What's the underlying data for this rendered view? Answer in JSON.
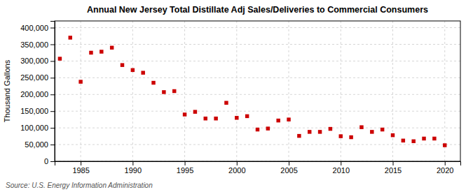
{
  "chart_data": {
    "type": "scatter",
    "title": "Annual New Jersey Total Distillate Adj Sales/Deliveries to Commercial Consumers",
    "ylabel": "Thousand Gallons",
    "source": "Source: U.S. Energy Information Administration",
    "x": [
      1983,
      1984,
      1985,
      1986,
      1987,
      1988,
      1989,
      1990,
      1991,
      1992,
      1993,
      1994,
      1995,
      1996,
      1997,
      1998,
      1999,
      2000,
      2001,
      2002,
      2003,
      2004,
      2005,
      2006,
      2007,
      2008,
      2009,
      2010,
      2011,
      2012,
      2013,
      2014,
      2015,
      2016,
      2017,
      2018,
      2019,
      2020
    ],
    "values": [
      307000,
      370000,
      238000,
      325000,
      328000,
      340000,
      288000,
      273000,
      265000,
      235000,
      207000,
      210000,
      140000,
      148000,
      128000,
      128000,
      175000,
      130000,
      135000,
      95000,
      98000,
      122000,
      125000,
      76000,
      88000,
      88000,
      97000,
      75000,
      72000,
      102000,
      88000,
      95000,
      78000,
      62000,
      60000,
      68000,
      68000,
      48000
    ],
    "color": "#cc0000",
    "marker": "square",
    "grid": true,
    "xlim": [
      1982.5,
      2021.5
    ],
    "xticks": [
      1985,
      1990,
      1995,
      2000,
      2005,
      2010,
      2015,
      2020
    ],
    "ylim": [
      0,
      420000
    ],
    "yticks": [
      0,
      {
        "value": 50000,
        "label": "50,000"
      },
      {
        "value": 100000,
        "label": "100,000"
      },
      {
        "value": 150000,
        "label": "150,000"
      },
      {
        "value": 200000,
        "label": "200,000"
      },
      {
        "value": 250000,
        "label": "250,000"
      },
      {
        "value": 300000,
        "label": "300,000"
      },
      {
        "value": 350000,
        "label": "350,000"
      },
      {
        "value": 400000,
        "label": "400,000"
      }
    ]
  }
}
